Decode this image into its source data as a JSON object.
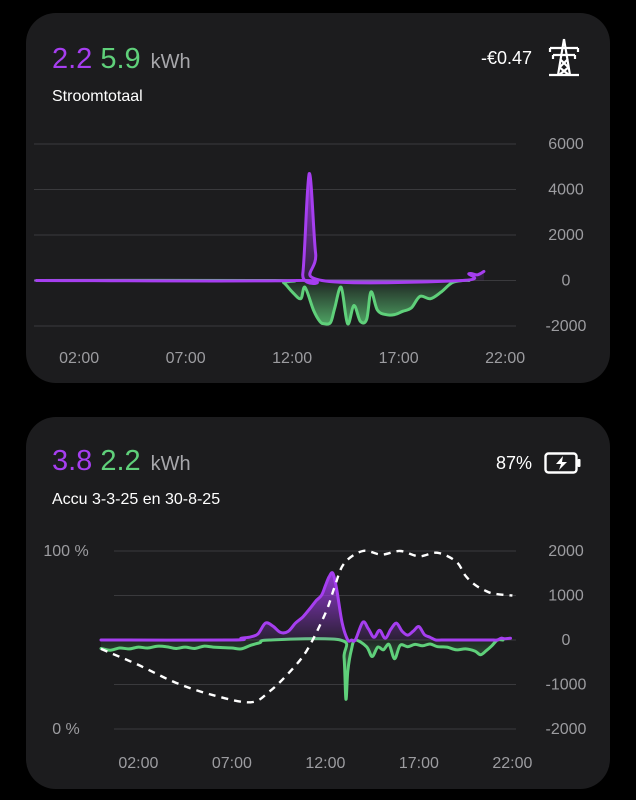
{
  "card1": {
    "value_import": "2.2",
    "value_export": "5.9",
    "unit": "kWh",
    "title": "Stroomtotaal",
    "cost": "-€0.47",
    "icon": "power-pylon-icon",
    "chart_data": {
      "type": "area",
      "x_ticks": [
        "02:00",
        "07:00",
        "12:00",
        "17:00",
        "22:00"
      ],
      "y_ticks": [
        "6000",
        "4000",
        "2000",
        "0",
        "-2000"
      ],
      "ylim": [
        -2000,
        6000
      ],
      "series": [
        {
          "color": "#a63ef0",
          "x": [
            0.0,
            12.2,
            12.5,
            12.8,
            13.1,
            13.4,
            20.0,
            20.3,
            20.7,
            21.0
          ],
          "values": [
            0,
            0,
            300,
            4700,
            1200,
            0,
            0,
            300,
            250,
            400
          ]
        },
        {
          "color": "#5fd07a",
          "x": [
            0.0,
            11.2,
            11.6,
            12.0,
            12.4,
            12.6,
            13.0,
            13.3,
            13.5,
            13.8,
            14.0,
            14.3,
            14.6,
            14.9,
            15.2,
            15.5,
            15.7,
            16.0,
            16.4,
            16.8,
            17.2,
            17.6,
            18.0,
            18.5,
            19.0,
            19.5,
            20.0,
            20.3
          ],
          "values": [
            0,
            0,
            -100,
            -500,
            -800,
            -300,
            -1300,
            -1800,
            -1900,
            -1850,
            -1200,
            -300,
            -1900,
            -1100,
            -1800,
            -1700,
            -500,
            -1300,
            -1500,
            -1500,
            -1350,
            -1200,
            -700,
            -800,
            -500,
            -100,
            0,
            0
          ]
        }
      ]
    }
  },
  "card2": {
    "value_charge": "3.8",
    "value_discharge": "2.2",
    "unit": "kWh",
    "title": "Accu 3-3-25 en 30-8-25",
    "soc": "87%",
    "icon": "battery-charging-icon",
    "chart_data": {
      "type": "area",
      "x_ticks": [
        "02:00",
        "07:00",
        "12:00",
        "17:00",
        "22:00"
      ],
      "y_ticks_right": [
        "2000",
        "1000",
        "0",
        "-1000",
        "-2000"
      ],
      "y_ticks_left": [
        "100 %",
        "0 %"
      ],
      "ylim": [
        -2000,
        2000
      ],
      "series": [
        {
          "color": "#a63ef0",
          "x": [
            0.0,
            7.0,
            7.5,
            8.0,
            8.4,
            8.8,
            9.2,
            9.6,
            10.0,
            10.4,
            10.8,
            11.2,
            11.5,
            11.8,
            12.0,
            12.2,
            12.4,
            12.6,
            12.9,
            13.2,
            13.4,
            13.6,
            14.0,
            14.3,
            14.6,
            14.9,
            15.2,
            15.5,
            15.8,
            16.1,
            16.4,
            16.7,
            17.0,
            17.3,
            17.6,
            17.9,
            18.2,
            18.6,
            19.0,
            19.4,
            19.8,
            20.1,
            20.4,
            20.7,
            21.0,
            21.2,
            21.4,
            21.6,
            21.9
          ],
          "values": [
            0,
            0,
            40,
            70,
            140,
            380,
            310,
            170,
            190,
            380,
            520,
            720,
            880,
            1010,
            1220,
            1420,
            1500,
            1150,
            380,
            0,
            0,
            0,
            400,
            250,
            60,
            220,
            40,
            240,
            380,
            200,
            110,
            200,
            300,
            120,
            60,
            0,
            0,
            0,
            0,
            0,
            0,
            0,
            0,
            0,
            0,
            0,
            40,
            30,
            40
          ]
        },
        {
          "color": "#5fd07a",
          "x": [
            0.0,
            0.5,
            1.0,
            1.5,
            2.0,
            2.5,
            3.0,
            3.5,
            4.0,
            4.5,
            5.0,
            5.5,
            6.0,
            6.5,
            7.0,
            7.5,
            8.0,
            8.5,
            9.0,
            12.8,
            13.0,
            13.1,
            13.2,
            13.4,
            13.6,
            14.2,
            14.5,
            14.8,
            15.1,
            15.4,
            15.7,
            16.0,
            16.4,
            16.8,
            17.2,
            17.6,
            18.0,
            18.5,
            19.0,
            19.5,
            20.0,
            20.3,
            20.6,
            20.9,
            21.2,
            21.5
          ],
          "values": [
            -190,
            -230,
            -180,
            -200,
            -160,
            -180,
            -140,
            -150,
            -190,
            -160,
            -190,
            -140,
            -160,
            -170,
            -180,
            -200,
            -120,
            -60,
            0,
            0,
            -400,
            -1330,
            -700,
            -200,
            0,
            -150,
            -370,
            -160,
            -220,
            -100,
            -420,
            -120,
            -150,
            -100,
            -130,
            -90,
            -150,
            -160,
            -220,
            -200,
            -250,
            -330,
            -240,
            -130,
            0,
            0
          ]
        }
      ],
      "soc_line": {
        "style": "dashed",
        "x": [
          0.0,
          2.0,
          4.0,
          6.0,
          8.0,
          9.0,
          10.0,
          11.0,
          12.0,
          12.5,
          13.0,
          14.0,
          15.0,
          16.0,
          17.0,
          18.0,
          19.0,
          19.5,
          20.0,
          20.5,
          21.0,
          22.0
        ],
        "values": [
          45,
          36,
          26,
          19,
          15,
          21,
          31,
          44,
          65,
          80,
          93,
          100,
          98,
          100,
          97,
          99,
          94,
          86,
          81,
          78,
          76,
          75
        ]
      }
    }
  }
}
